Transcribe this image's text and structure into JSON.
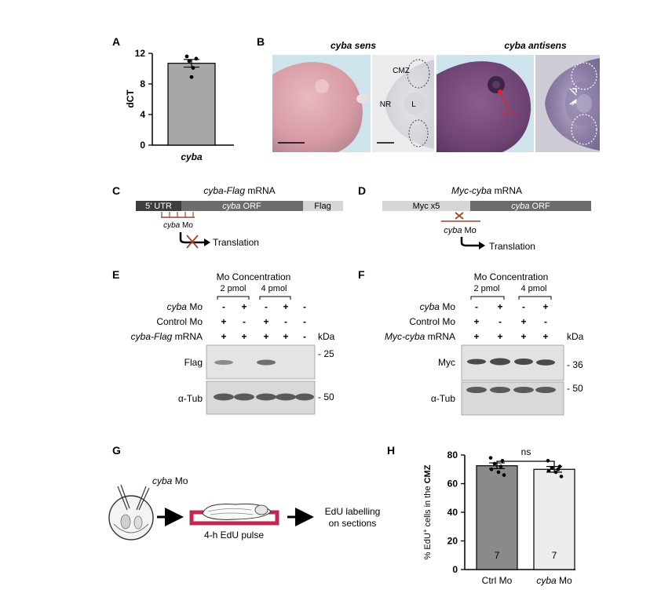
{
  "panel_letters": {
    "a": "A",
    "b": "B",
    "c": "C",
    "d": "D",
    "e": "E",
    "f": "F",
    "g": "G",
    "h": "H"
  },
  "panel_a": {
    "ylabel": "dCT",
    "category": "cyba",
    "chart_data": {
      "type": "bar",
      "categories": [
        "cyba"
      ],
      "values": [
        10.7
      ],
      "error": [
        0.5
      ],
      "points": [
        11.6,
        11.3,
        11.0,
        10.1,
        8.9
      ],
      "ylim": [
        0,
        12
      ],
      "yticks": [
        "0",
        "4",
        "8",
        "12"
      ]
    }
  },
  "panel_b": {
    "title_sens": "cyba sens",
    "title_antisens": "cyba antisens",
    "label_cmz": "CMZ",
    "label_nr": "NR",
    "label_l": "L",
    "label_cmz_red": "CMZ"
  },
  "panel_c": {
    "title_italic": "cyba-Flag",
    "title_rest": " mRNA",
    "seg_utr": "5’ UTR",
    "seg_orf_italic": "cyba",
    "seg_orf_rest": " ORF",
    "seg_flag": "Flag",
    "mo_italic": "cyba",
    "mo_rest": " Mo",
    "translation": "Translation"
  },
  "panel_d": {
    "title_italic": "Myc-cyba",
    "title_rest": " mRNA",
    "seg_myc": "Myc x5",
    "seg_orf_italic": "cyba",
    "seg_orf_rest": " ORF",
    "mo_italic": "cyba",
    "mo_rest": " Mo",
    "translation": "Translation"
  },
  "panel_e": {
    "header": "Mo Concentration",
    "conc1": "2 pmol",
    "conc2": "4 pmol",
    "row1_italic": "cyba",
    "row1_rest": " Mo",
    "row2": "Control Mo",
    "row3_italic": "cyba-Flag",
    "row3_rest": " mRNA",
    "row1_values": [
      "-",
      "+",
      "-",
      "+",
      "-"
    ],
    "row2_values": [
      "+",
      "-",
      "+",
      "-",
      "-"
    ],
    "row3_values": [
      "+",
      "+",
      "+",
      "+",
      "-"
    ],
    "kda": "kDa",
    "blot1_label": "Flag",
    "blot1_marker": "- 25",
    "blot2_label": "α-Tub",
    "blot2_marker": "- 50"
  },
  "panel_f": {
    "header": "Mo Concentration",
    "conc1": "2 pmol",
    "conc2": "4 pmol",
    "row1_italic": "cyba",
    "row1_rest": " Mo",
    "row2": "Control Mo",
    "row3_italic": "Myc-cyba",
    "row3_rest": " mRNA",
    "row1_values": [
      "-",
      "+",
      "-",
      "+"
    ],
    "row2_values": [
      "+",
      "-",
      "+",
      "-"
    ],
    "row3_values": [
      "+",
      "+",
      "+",
      "+"
    ],
    "kda": "kDa",
    "blot1_label": "Myc",
    "blot1_marker": "- 36",
    "blot2_label": "α-Tub",
    "blot2_marker": "- 50"
  },
  "panel_g": {
    "mo_italic": "cyba",
    "mo_rest": " Mo",
    "pulse": "4-h EdU pulse",
    "outcome_line1": "EdU labelling",
    "outcome_line2": "on sections"
  },
  "panel_h": {
    "ylabel_pre": "% EdU",
    "ylabel_sup": "+",
    "ylabel_mid": " cells in the ",
    "ylabel_bold": "CMZ",
    "significance": "ns",
    "cat1": "Ctrl Mo",
    "cat2_italic": "cyba",
    "cat2_rest": " Mo",
    "chart_data": {
      "type": "bar",
      "categories": [
        "Ctrl Mo",
        "cyba Mo"
      ],
      "values": [
        72.5,
        70.0
      ],
      "error": [
        2.0,
        2.0
      ],
      "n": [
        "7",
        "7"
      ],
      "points": [
        [
          78,
          76,
          74,
          72,
          70,
          68,
          66
        ],
        [
          76,
          72,
          71,
          70,
          69,
          68,
          65
        ]
      ],
      "ylim": [
        0,
        80
      ],
      "yticks": [
        "0",
        "20",
        "40",
        "60",
        "80"
      ],
      "colors": [
        "#8a8a8a",
        "#ececec"
      ]
    }
  }
}
